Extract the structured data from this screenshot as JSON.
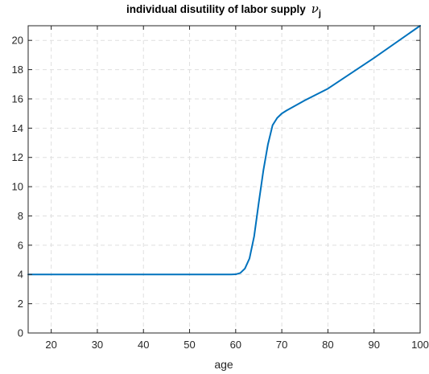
{
  "chart_data": {
    "type": "line",
    "title": {
      "text": "individual disutility of labor supply",
      "symbol": "ν",
      "subscript": "j"
    },
    "xlabel": "age",
    "ylabel": "",
    "xlim": [
      15,
      100
    ],
    "ylim": [
      0,
      21
    ],
    "xticks": [
      20,
      30,
      40,
      50,
      60,
      70,
      80,
      90,
      100
    ],
    "yticks": [
      0,
      2,
      4,
      6,
      8,
      10,
      12,
      14,
      16,
      18,
      20
    ],
    "grid": true,
    "box": true,
    "line_color": "#0072BD",
    "axis_color": "#262626",
    "grid_color": "#dfdfdf",
    "series": [
      {
        "x": [
          15,
          20,
          30,
          40,
          50,
          58,
          59,
          60,
          61,
          62,
          63,
          64,
          65,
          66,
          67,
          68,
          69,
          70,
          71,
          75,
          80,
          90,
          100
        ],
        "y": [
          4,
          4,
          4,
          4,
          4,
          4,
          4,
          4.01,
          4.1,
          4.4,
          5.1,
          6.6,
          8.9,
          11.1,
          12.9,
          14.2,
          14.7,
          15.0,
          15.2,
          15.9,
          16.7,
          18.8,
          21.0
        ]
      }
    ]
  }
}
